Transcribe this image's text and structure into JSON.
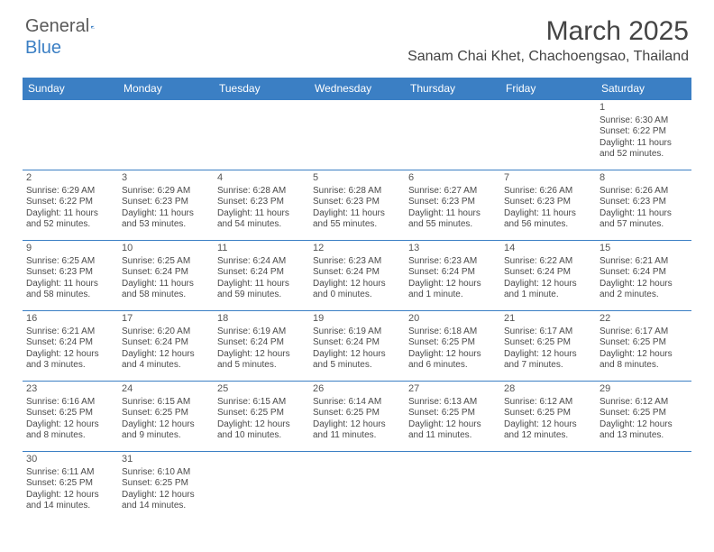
{
  "logo": {
    "text1": "General",
    "text2": "Blue"
  },
  "title": "March 2025",
  "location": "Sanam Chai Khet, Chachoengsao, Thailand",
  "colors": {
    "header_bg": "#3b7fc4",
    "border": "#3b7fc4",
    "text": "#4a4a4a"
  },
  "days_of_week": [
    "Sunday",
    "Monday",
    "Tuesday",
    "Wednesday",
    "Thursday",
    "Friday",
    "Saturday"
  ],
  "weeks": [
    [
      null,
      null,
      null,
      null,
      null,
      null,
      {
        "n": "1",
        "sr": "Sunrise: 6:30 AM",
        "ss": "Sunset: 6:22 PM",
        "dl": "Daylight: 11 hours and 52 minutes."
      }
    ],
    [
      {
        "n": "2",
        "sr": "Sunrise: 6:29 AM",
        "ss": "Sunset: 6:22 PM",
        "dl": "Daylight: 11 hours and 52 minutes."
      },
      {
        "n": "3",
        "sr": "Sunrise: 6:29 AM",
        "ss": "Sunset: 6:23 PM",
        "dl": "Daylight: 11 hours and 53 minutes."
      },
      {
        "n": "4",
        "sr": "Sunrise: 6:28 AM",
        "ss": "Sunset: 6:23 PM",
        "dl": "Daylight: 11 hours and 54 minutes."
      },
      {
        "n": "5",
        "sr": "Sunrise: 6:28 AM",
        "ss": "Sunset: 6:23 PM",
        "dl": "Daylight: 11 hours and 55 minutes."
      },
      {
        "n": "6",
        "sr": "Sunrise: 6:27 AM",
        "ss": "Sunset: 6:23 PM",
        "dl": "Daylight: 11 hours and 55 minutes."
      },
      {
        "n": "7",
        "sr": "Sunrise: 6:26 AM",
        "ss": "Sunset: 6:23 PM",
        "dl": "Daylight: 11 hours and 56 minutes."
      },
      {
        "n": "8",
        "sr": "Sunrise: 6:26 AM",
        "ss": "Sunset: 6:23 PM",
        "dl": "Daylight: 11 hours and 57 minutes."
      }
    ],
    [
      {
        "n": "9",
        "sr": "Sunrise: 6:25 AM",
        "ss": "Sunset: 6:23 PM",
        "dl": "Daylight: 11 hours and 58 minutes."
      },
      {
        "n": "10",
        "sr": "Sunrise: 6:25 AM",
        "ss": "Sunset: 6:24 PM",
        "dl": "Daylight: 11 hours and 58 minutes."
      },
      {
        "n": "11",
        "sr": "Sunrise: 6:24 AM",
        "ss": "Sunset: 6:24 PM",
        "dl": "Daylight: 11 hours and 59 minutes."
      },
      {
        "n": "12",
        "sr": "Sunrise: 6:23 AM",
        "ss": "Sunset: 6:24 PM",
        "dl": "Daylight: 12 hours and 0 minutes."
      },
      {
        "n": "13",
        "sr": "Sunrise: 6:23 AM",
        "ss": "Sunset: 6:24 PM",
        "dl": "Daylight: 12 hours and 1 minute."
      },
      {
        "n": "14",
        "sr": "Sunrise: 6:22 AM",
        "ss": "Sunset: 6:24 PM",
        "dl": "Daylight: 12 hours and 1 minute."
      },
      {
        "n": "15",
        "sr": "Sunrise: 6:21 AM",
        "ss": "Sunset: 6:24 PM",
        "dl": "Daylight: 12 hours and 2 minutes."
      }
    ],
    [
      {
        "n": "16",
        "sr": "Sunrise: 6:21 AM",
        "ss": "Sunset: 6:24 PM",
        "dl": "Daylight: 12 hours and 3 minutes."
      },
      {
        "n": "17",
        "sr": "Sunrise: 6:20 AM",
        "ss": "Sunset: 6:24 PM",
        "dl": "Daylight: 12 hours and 4 minutes."
      },
      {
        "n": "18",
        "sr": "Sunrise: 6:19 AM",
        "ss": "Sunset: 6:24 PM",
        "dl": "Daylight: 12 hours and 5 minutes."
      },
      {
        "n": "19",
        "sr": "Sunrise: 6:19 AM",
        "ss": "Sunset: 6:24 PM",
        "dl": "Daylight: 12 hours and 5 minutes."
      },
      {
        "n": "20",
        "sr": "Sunrise: 6:18 AM",
        "ss": "Sunset: 6:25 PM",
        "dl": "Daylight: 12 hours and 6 minutes."
      },
      {
        "n": "21",
        "sr": "Sunrise: 6:17 AM",
        "ss": "Sunset: 6:25 PM",
        "dl": "Daylight: 12 hours and 7 minutes."
      },
      {
        "n": "22",
        "sr": "Sunrise: 6:17 AM",
        "ss": "Sunset: 6:25 PM",
        "dl": "Daylight: 12 hours and 8 minutes."
      }
    ],
    [
      {
        "n": "23",
        "sr": "Sunrise: 6:16 AM",
        "ss": "Sunset: 6:25 PM",
        "dl": "Daylight: 12 hours and 8 minutes."
      },
      {
        "n": "24",
        "sr": "Sunrise: 6:15 AM",
        "ss": "Sunset: 6:25 PM",
        "dl": "Daylight: 12 hours and 9 minutes."
      },
      {
        "n": "25",
        "sr": "Sunrise: 6:15 AM",
        "ss": "Sunset: 6:25 PM",
        "dl": "Daylight: 12 hours and 10 minutes."
      },
      {
        "n": "26",
        "sr": "Sunrise: 6:14 AM",
        "ss": "Sunset: 6:25 PM",
        "dl": "Daylight: 12 hours and 11 minutes."
      },
      {
        "n": "27",
        "sr": "Sunrise: 6:13 AM",
        "ss": "Sunset: 6:25 PM",
        "dl": "Daylight: 12 hours and 11 minutes."
      },
      {
        "n": "28",
        "sr": "Sunrise: 6:12 AM",
        "ss": "Sunset: 6:25 PM",
        "dl": "Daylight: 12 hours and 12 minutes."
      },
      {
        "n": "29",
        "sr": "Sunrise: 6:12 AM",
        "ss": "Sunset: 6:25 PM",
        "dl": "Daylight: 12 hours and 13 minutes."
      }
    ],
    [
      {
        "n": "30",
        "sr": "Sunrise: 6:11 AM",
        "ss": "Sunset: 6:25 PM",
        "dl": "Daylight: 12 hours and 14 minutes."
      },
      {
        "n": "31",
        "sr": "Sunrise: 6:10 AM",
        "ss": "Sunset: 6:25 PM",
        "dl": "Daylight: 12 hours and 14 minutes."
      },
      null,
      null,
      null,
      null,
      null
    ]
  ]
}
